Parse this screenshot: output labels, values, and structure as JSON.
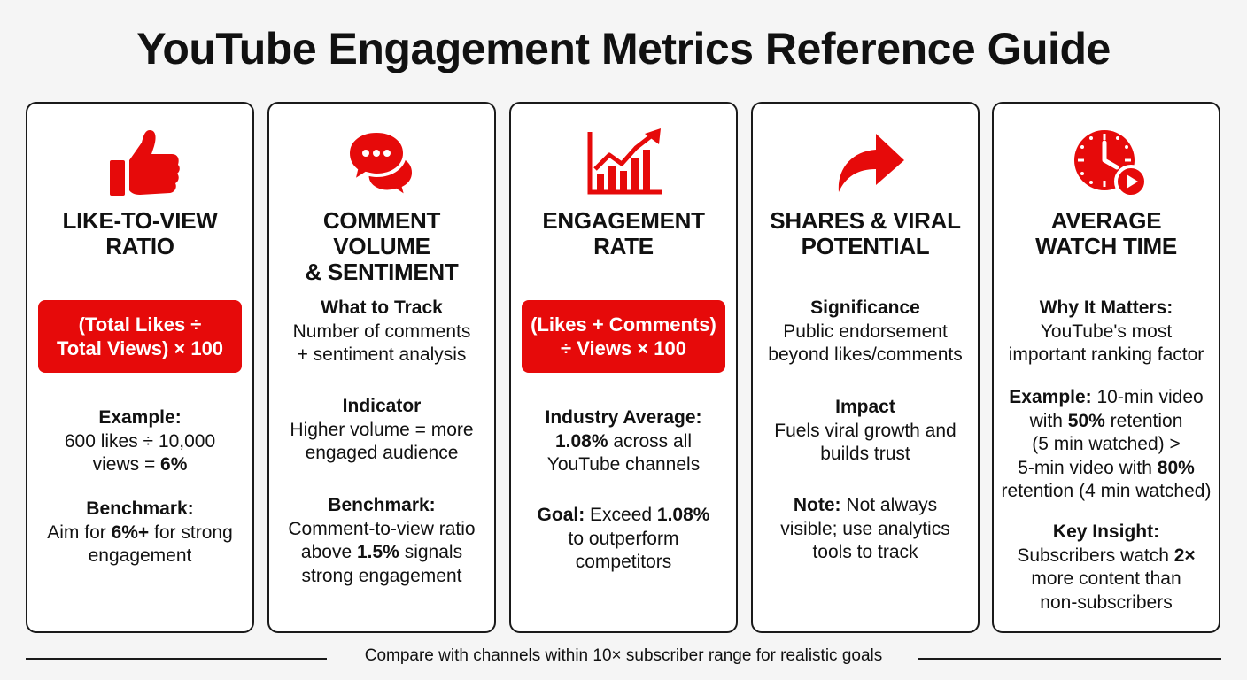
{
  "title": "YouTube Engagement Metrics Reference Guide",
  "colors": {
    "accent": "#e60a0a",
    "background": "#f5f5f5",
    "text": "#111111"
  },
  "cards": [
    {
      "icon": "thumbs-up-icon",
      "title_line1": "LIKE-TO-VIEW",
      "title_line2": "RATIO",
      "formula_line1": "(Total Likes ÷",
      "formula_line2": "Total Views) × 100",
      "s1_label": "Example:",
      "s1_l1": "600 likes ÷ 10,000",
      "s1_l2a": "views = ",
      "s1_l2b": "6%",
      "s2_label": "Benchmark:",
      "s2_l1a": "Aim for ",
      "s2_l1b": "6%+",
      "s2_l1c": " for strong",
      "s2_l2": "engagement"
    },
    {
      "icon": "chat-bubbles-icon",
      "title_line1": "COMMENT VOLUME",
      "title_line2": "& SENTIMENT",
      "s1_label": "What to Track",
      "s1_l1": "Number of comments",
      "s1_l2": "+ sentiment analysis",
      "s2_label": "Indicator",
      "s2_l1": "Higher volume = more",
      "s2_l2": "engaged audience",
      "s3_label": "Benchmark:",
      "s3_l1": "Comment-to-view ratio",
      "s3_l2a": "above ",
      "s3_l2b": "1.5%",
      "s3_l2c": " signals",
      "s3_l3": "strong engagement"
    },
    {
      "icon": "growth-chart-icon",
      "title_line1": "ENGAGEMENT",
      "title_line2": "RATE",
      "formula_line1": "(Likes + Comments)",
      "formula_line2": "÷ Views × 100",
      "s1_label": "Industry Average:",
      "s1_l1a": "1.08%",
      "s1_l1b": " across all",
      "s1_l2": "YouTube channels",
      "s2_label": "Goal:",
      "s2_l1a": " Exceed ",
      "s2_l1b": "1.08%",
      "s2_l2": "to outperform",
      "s2_l3": "competitors"
    },
    {
      "icon": "share-arrow-icon",
      "title_line1": "SHARES & VIRAL",
      "title_line2": "POTENTIAL",
      "s1_label": "Significance",
      "s1_l1": "Public endorsement",
      "s1_l2": "beyond likes/comments",
      "s2_label": "Impact",
      "s2_l1": "Fuels viral growth and",
      "s2_l2": "builds trust",
      "s3_label": "Note:",
      "s3_l1a": " Not always",
      "s3_l2": "visible; use analytics",
      "s3_l3": "tools to track"
    },
    {
      "icon": "clock-play-icon",
      "title_line1": "AVERAGE",
      "title_line2": "WATCH TIME",
      "s1_label": "Why It Matters:",
      "s1_l1": "YouTube's most",
      "s1_l2": "important ranking factor",
      "s2_label": "Example:",
      "s2_l1a": " 10-min video",
      "s2_l2a": "with ",
      "s2_l2b": "50%",
      "s2_l2c": " retention",
      "s2_l3": "(5 min watched) >",
      "s2_l4a": "5-min video with ",
      "s2_l4b": "80%",
      "s2_l5": "retention (4 min watched)",
      "s3_label": "Key Insight:",
      "s3_l1a": "Subscribers watch ",
      "s3_l1b": "2×",
      "s3_l2": "more content than",
      "s3_l3": "non-subscribers"
    }
  ],
  "footer": "Compare with channels within 10× subscriber range for realistic goals"
}
